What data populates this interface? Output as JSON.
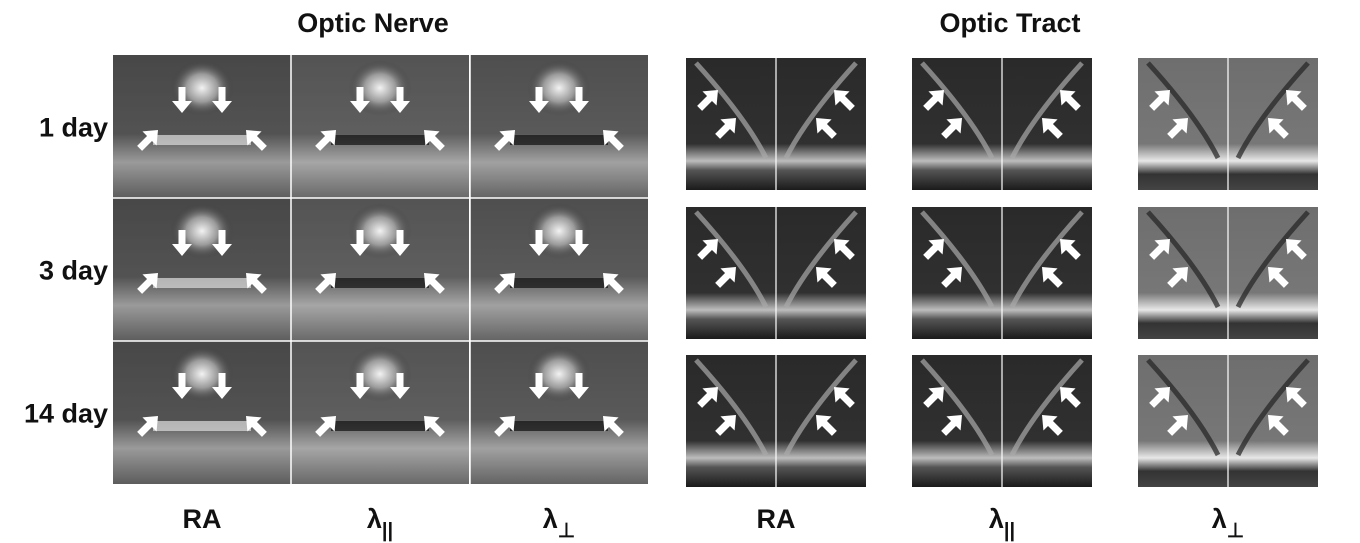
{
  "row_labels": [
    "1 day",
    "3 day",
    "14 day"
  ],
  "optic_nerve": {
    "title": "Optic Nerve",
    "columns": [
      {
        "symbol": "RA"
      },
      {
        "symbol": "λ",
        "subscript": "||"
      },
      {
        "symbol": "λ",
        "subscript": "⊥"
      }
    ]
  },
  "optic_tract": {
    "title": "Optic Tract",
    "columns": [
      {
        "symbol": "RA"
      },
      {
        "symbol": "λ",
        "subscript": "||"
      },
      {
        "symbol": "λ",
        "subscript": "⊥"
      }
    ]
  }
}
